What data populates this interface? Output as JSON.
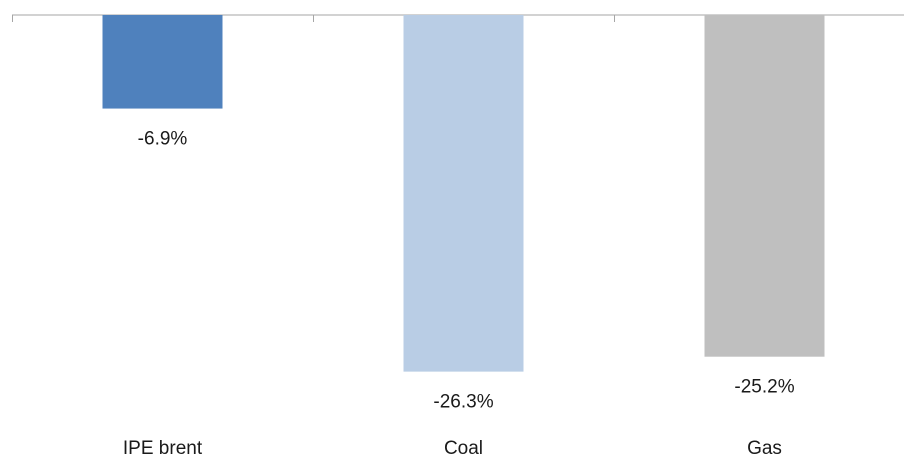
{
  "chart_data": {
    "type": "bar",
    "title": "",
    "xlabel": "",
    "ylabel": "",
    "categories": [
      "IPE brent",
      "Coal",
      "Gas"
    ],
    "values": [
      -6.9,
      -26.3,
      -25.2
    ],
    "data_labels": [
      "-6.9%",
      "-26.3%",
      "-25.2%"
    ],
    "colors": [
      "#4f81bd",
      "#b9cde5",
      "#bfbfbf"
    ],
    "ylim": [
      -28,
      0
    ],
    "grid": false,
    "legend": "none"
  }
}
